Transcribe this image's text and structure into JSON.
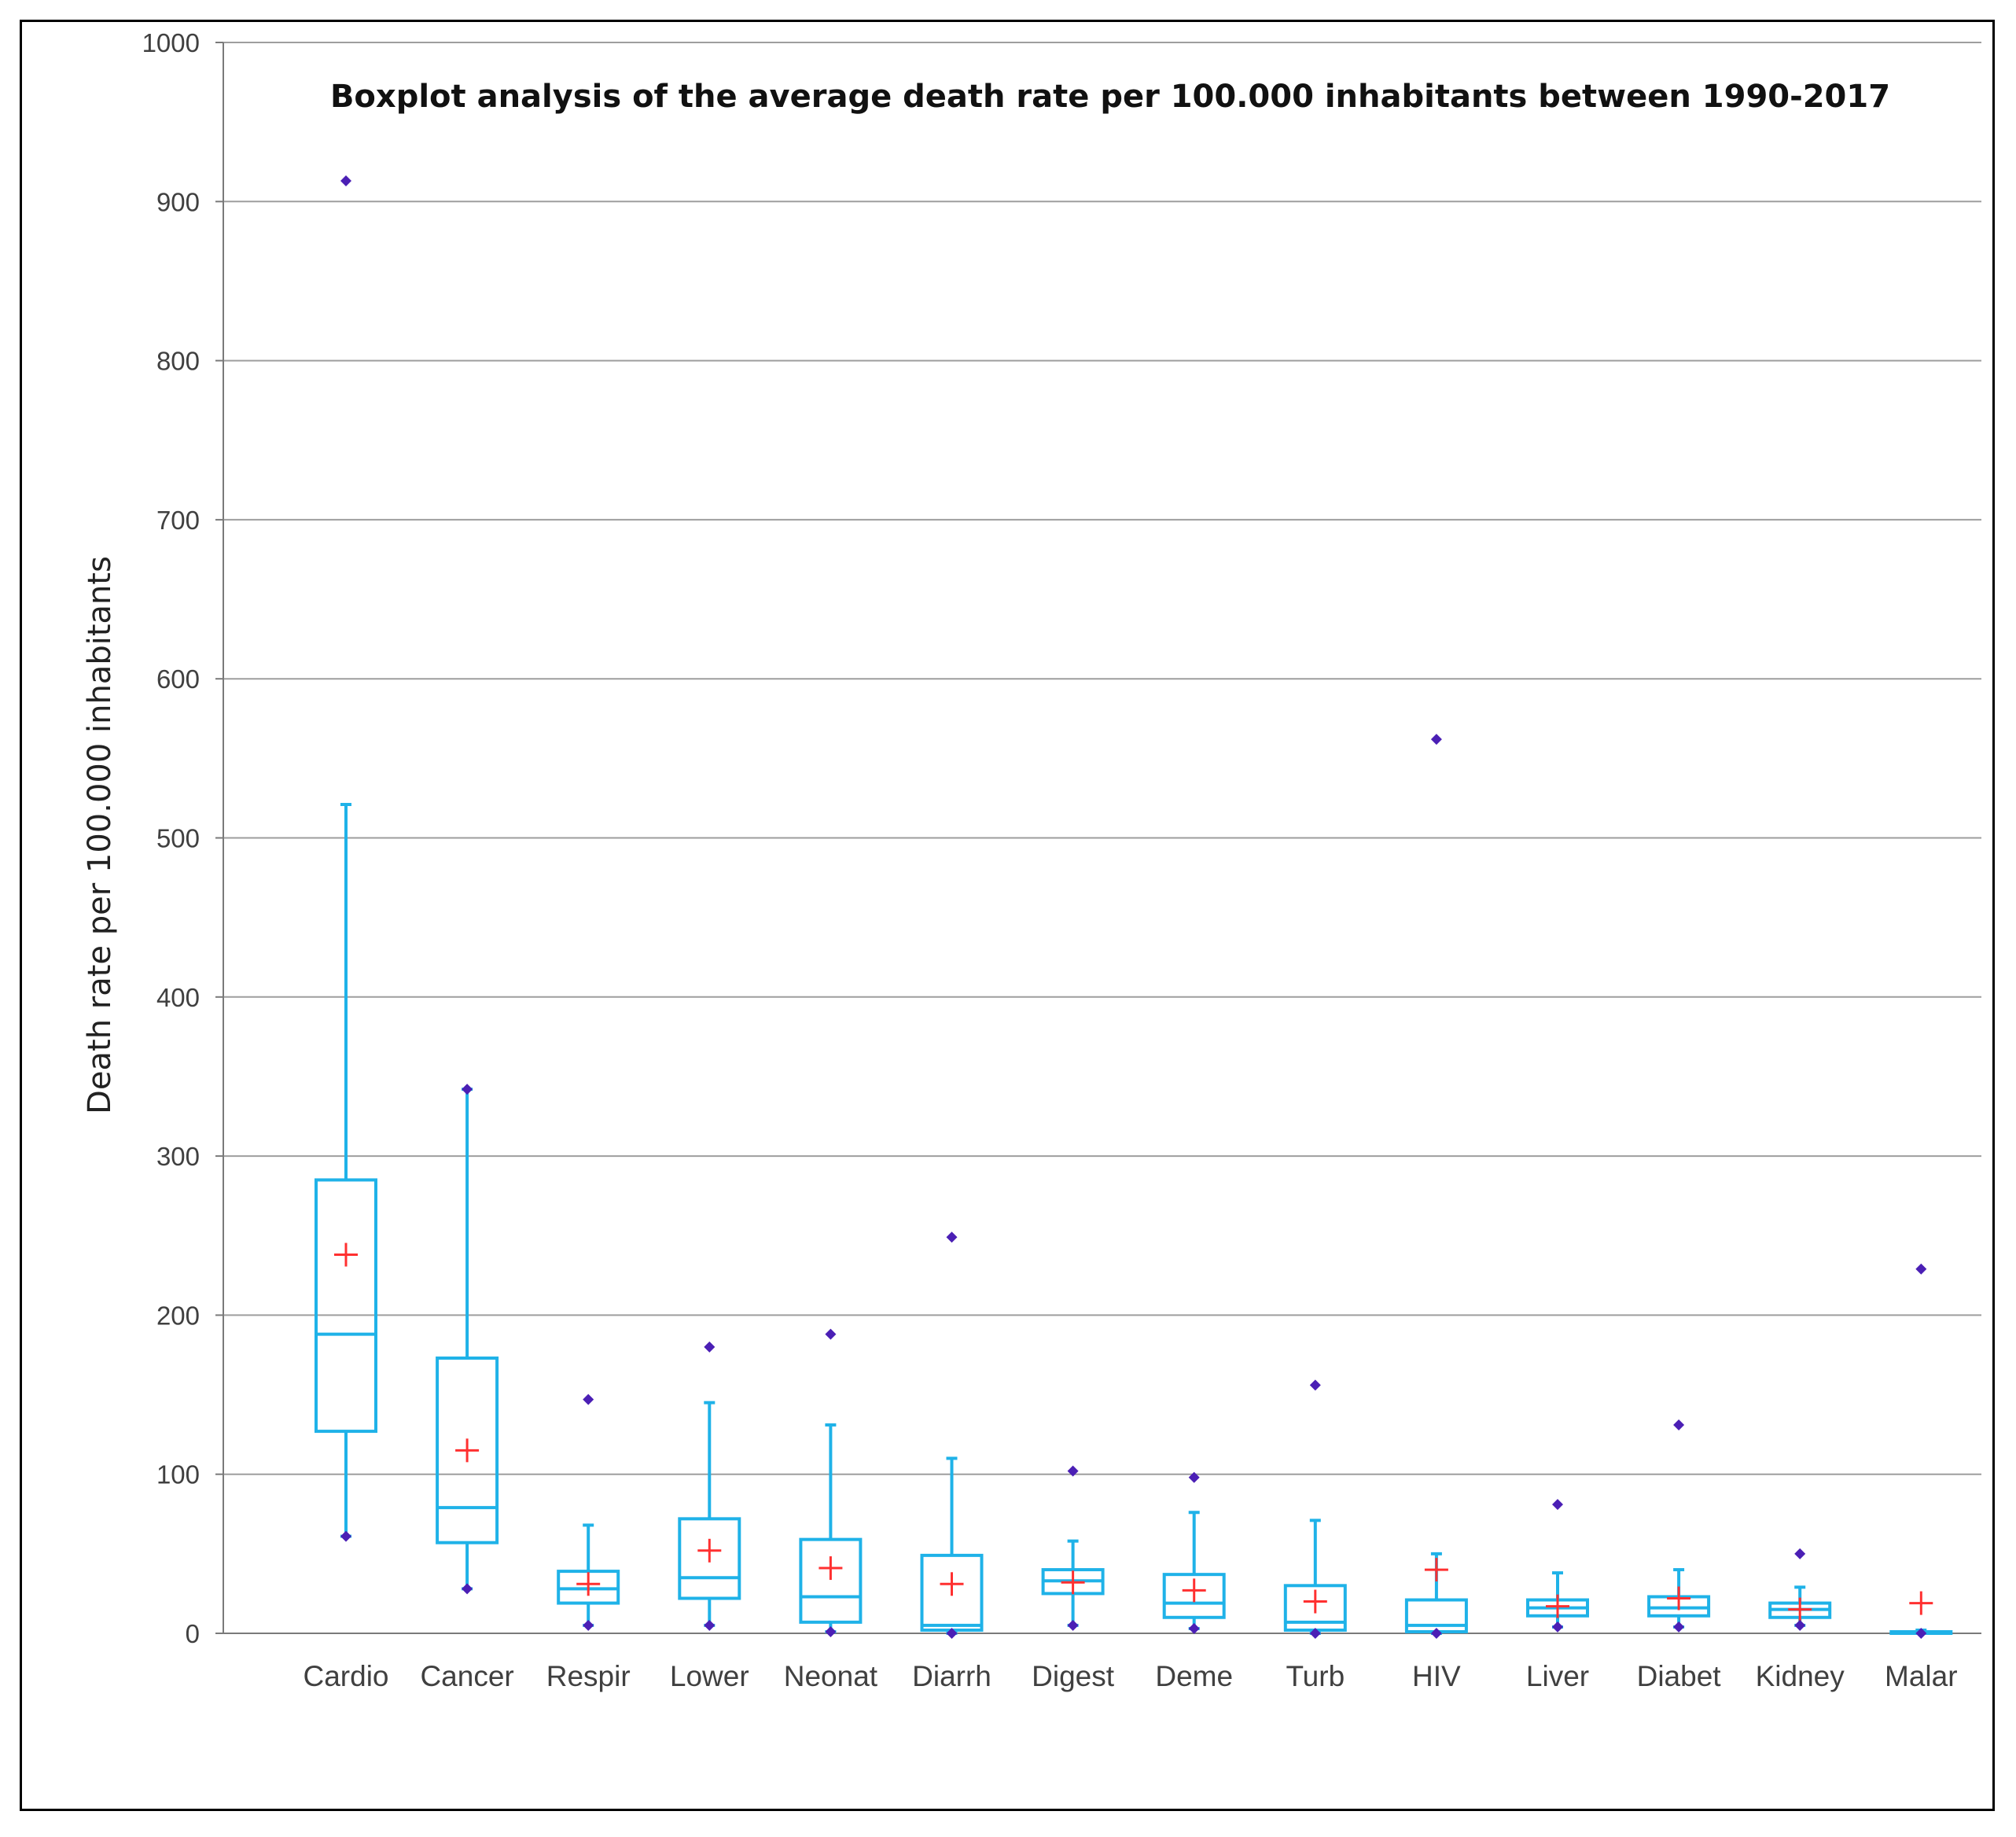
{
  "chart_data": {
    "type": "boxplot",
    "title": "Boxplot analysis of the average death rate per 100.000 inhabitants between 1990-2017",
    "xlabel": "",
    "ylabel": "Death rate per 100.000 inhabitants",
    "ylim": [
      0,
      1000
    ],
    "yticks": [
      0,
      100,
      200,
      300,
      400,
      500,
      600,
      700,
      800,
      900,
      1000
    ],
    "grid": true,
    "colors": {
      "box": "#1fb2e8",
      "mean": "#ff3030",
      "point": "#4b1fb5",
      "grid": "#9e9e9e",
      "axis": "#7a7a7a"
    },
    "categories": [
      "Cardio",
      "Cancer",
      "Respir",
      "Lower",
      "Neonat",
      "Diarrh",
      "Digest",
      "Deme",
      "Turb",
      "HIV",
      "Liver",
      "Diabet",
      "Kidney",
      "Malar"
    ],
    "boxes": [
      {
        "min": 61,
        "q1": 127,
        "median": 188,
        "q3": 285,
        "max": 521,
        "mean": 238,
        "points": [
          913,
          61
        ]
      },
      {
        "min": 28,
        "q1": 57,
        "median": 79,
        "q3": 173,
        "max": 342,
        "mean": 115,
        "points": [
          342,
          28
        ]
      },
      {
        "min": 5,
        "q1": 19,
        "median": 28,
        "q3": 39,
        "max": 68,
        "mean": 31,
        "points": [
          147,
          5
        ]
      },
      {
        "min": 5,
        "q1": 22,
        "median": 35,
        "q3": 72,
        "max": 145,
        "mean": 52,
        "points": [
          180,
          5
        ]
      },
      {
        "min": 1,
        "q1": 7,
        "median": 23,
        "q3": 59,
        "max": 131,
        "mean": 41,
        "points": [
          188,
          1
        ]
      },
      {
        "min": 0,
        "q1": 2,
        "median": 5,
        "q3": 49,
        "max": 110,
        "mean": 31,
        "points": [
          249,
          0
        ]
      },
      {
        "min": 5,
        "q1": 25,
        "median": 33,
        "q3": 40,
        "max": 58,
        "mean": 32,
        "points": [
          102,
          5
        ]
      },
      {
        "min": 3,
        "q1": 10,
        "median": 19,
        "q3": 37,
        "max": 76,
        "mean": 27,
        "points": [
          98,
          3
        ]
      },
      {
        "min": 0,
        "q1": 2,
        "median": 7,
        "q3": 30,
        "max": 71,
        "mean": 20,
        "points": [
          156,
          0
        ]
      },
      {
        "min": 0,
        "q1": 1,
        "median": 5,
        "q3": 21,
        "max": 50,
        "mean": 40,
        "points": [
          562,
          0
        ]
      },
      {
        "min": 4,
        "q1": 11,
        "median": 16,
        "q3": 21,
        "max": 38,
        "mean": 17,
        "points": [
          81,
          4
        ]
      },
      {
        "min": 4,
        "q1": 11,
        "median": 16,
        "q3": 23,
        "max": 40,
        "mean": 22,
        "points": [
          131,
          4
        ]
      },
      {
        "min": 5,
        "q1": 10,
        "median": 15,
        "q3": 19,
        "max": 29,
        "mean": 15,
        "points": [
          50,
          5
        ]
      },
      {
        "min": 0,
        "q1": 0,
        "median": 1,
        "q3": 1,
        "max": 2,
        "mean": 19,
        "points": [
          229,
          0
        ]
      }
    ]
  }
}
